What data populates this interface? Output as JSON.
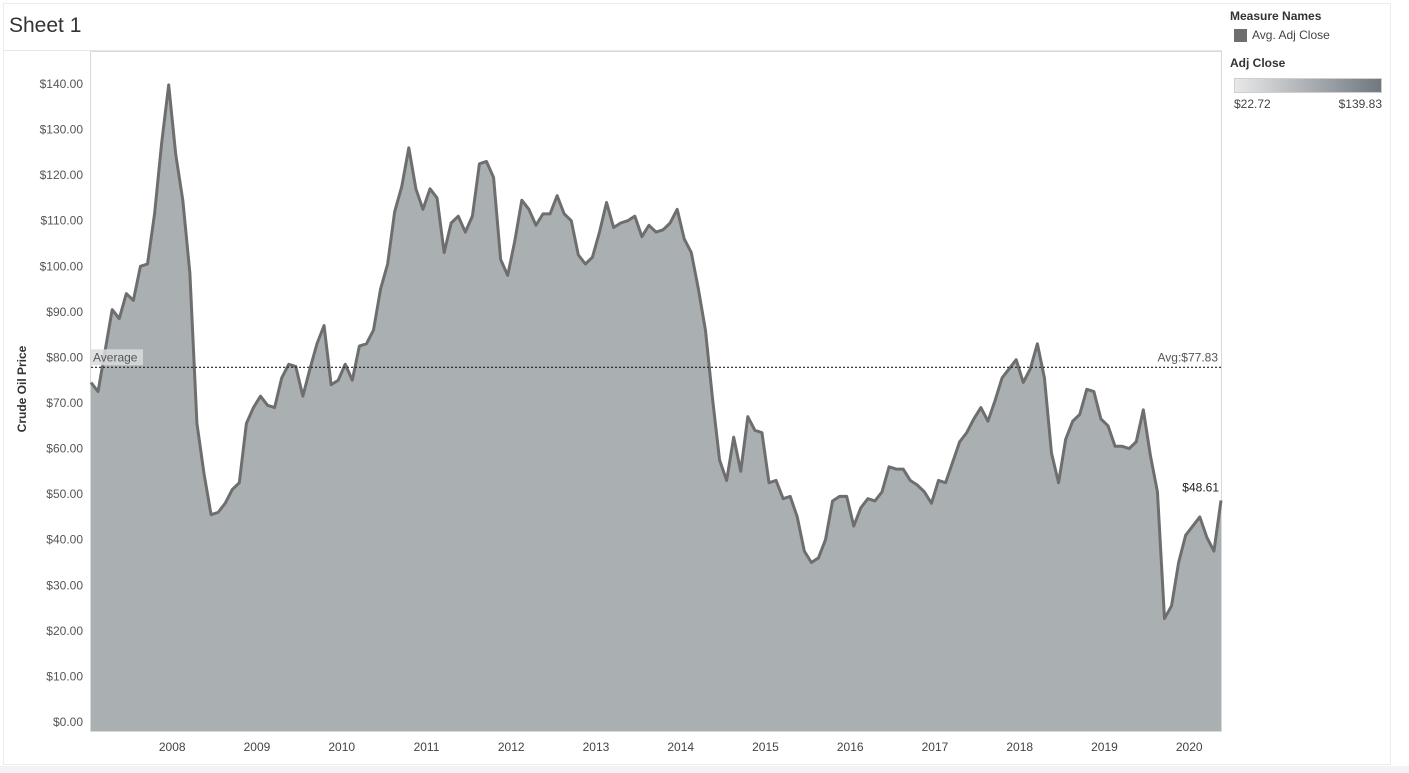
{
  "sheet": {
    "title": "Sheet 1"
  },
  "legend": {
    "measure_title": "Measure Names",
    "measure_item": "Avg. Adj Close",
    "measure_color": "#6e6e6e",
    "color_title": "Adj Close",
    "color_min_label": "$22.72",
    "color_max_label": "$139.83",
    "gradient_colors": [
      "#e8e8e8",
      "#6f7880"
    ]
  },
  "chart_data": {
    "type": "area",
    "title": "Sheet 1",
    "ylabel": "Crude Oil Price",
    "xlabel": "",
    "ylim": [
      0,
      140
    ],
    "yticks": [
      "$0.00",
      "$10.00",
      "$20.00",
      "$30.00",
      "$40.00",
      "$50.00",
      "$60.00",
      "$70.00",
      "$80.00",
      "$90.00",
      "$100.00",
      "$110.00",
      "$120.00",
      "$130.00",
      "$140.00"
    ],
    "xticks": [
      "2008",
      "2009",
      "2010",
      "2011",
      "2012",
      "2013",
      "2014",
      "2015",
      "2016",
      "2017",
      "2018",
      "2019",
      "2020"
    ],
    "x_start": "2007-07",
    "x_unit": "month",
    "grid": false,
    "legend_position": "right",
    "series": [
      {
        "name": "Avg. Adj Close",
        "line_color": "#6e6e6e",
        "fill_color": "#aab0b2",
        "values": [
          74.5,
          72.5,
          81.5,
          90.5,
          88.5,
          94.0,
          92.5,
          100.0,
          100.5,
          111.5,
          127.0,
          139.8,
          124.5,
          114.5,
          98.5,
          65.5,
          54.5,
          45.5,
          46.0,
          48.0,
          51.0,
          52.5,
          65.5,
          69.0,
          71.5,
          69.5,
          69.0,
          75.5,
          78.5,
          78.0,
          71.5,
          77.5,
          83.0,
          87.0,
          74.0,
          75.0,
          78.5,
          75.0,
          82.5,
          83.0,
          86.0,
          95.0,
          100.5,
          112.0,
          117.5,
          126.0,
          117.0,
          112.5,
          117.0,
          115.0,
          103.0,
          109.5,
          111.0,
          107.5,
          111.0,
          122.5,
          123.0,
          119.5,
          101.5,
          98.0,
          105.5,
          114.5,
          112.5,
          109.0,
          111.5,
          111.5,
          115.5,
          111.5,
          110.0,
          102.5,
          100.5,
          102.0,
          107.5,
          114.0,
          108.5,
          109.5,
          110.0,
          111.0,
          106.5,
          109.0,
          107.5,
          108.0,
          109.5,
          112.5,
          106.0,
          103.0,
          95.0,
          86.0,
          71.0,
          57.5,
          53.0,
          62.5,
          55.0,
          67.0,
          64.0,
          63.5,
          52.5,
          53.0,
          49.0,
          49.5,
          45.0,
          37.5,
          35.0,
          36.0,
          40.0,
          48.5,
          49.5,
          49.5,
          43.0,
          47.0,
          49.0,
          48.5,
          50.5,
          56.0,
          55.5,
          55.5,
          53.0,
          52.0,
          50.5,
          48.0,
          53.0,
          52.5,
          57.0,
          61.5,
          63.5,
          66.5,
          69.0,
          66.0,
          70.5,
          75.5,
          77.5,
          79.5,
          74.5,
          77.5,
          83.0,
          75.5,
          59.0,
          52.5,
          62.0,
          66.0,
          67.5,
          73.0,
          72.5,
          66.5,
          65.0,
          60.5,
          60.5,
          60.0,
          61.5,
          68.5,
          58.5,
          50.5,
          22.7,
          25.5,
          35.0,
          41.0,
          43.0,
          45.0,
          40.5,
          37.5,
          48.61
        ],
        "last_value_label": "$48.61"
      }
    ],
    "reference_line": {
      "value": 77.83,
      "label_left": "Average",
      "label_right": "Avg:$77.83"
    }
  }
}
